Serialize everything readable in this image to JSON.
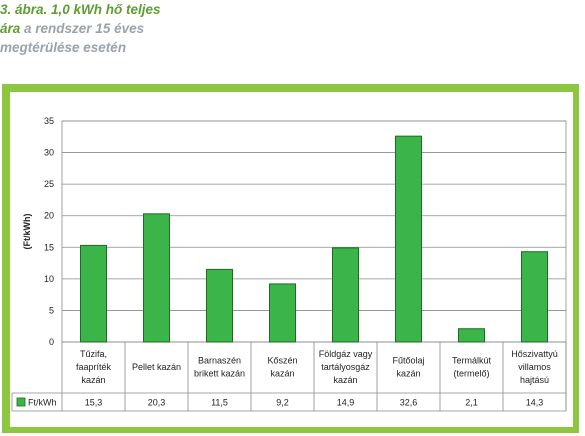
{
  "caption": {
    "line1_green": "3. ábra. 1,0 kWh hő teljes",
    "line2_green": "ára",
    "line2_gray": " a rendszer 15 éves",
    "line3_gray": "megtérülése esetén"
  },
  "colors": {
    "frame": "#8dc63f",
    "bar": "#3bb54a",
    "bar_stroke": "#1e6b24",
    "caption_green": "#5e9e33",
    "caption_gray": "#9ba3a9"
  },
  "chart_data": {
    "type": "bar",
    "ylabel": "(Ft/kWh)",
    "ylim": [
      0,
      35
    ],
    "yticks": [
      0,
      5,
      10,
      15,
      20,
      25,
      30,
      35
    ],
    "grid": true,
    "categories": [
      [
        "Tűzifa,",
        "faapríték",
        "kazán"
      ],
      [
        "Pellet kazán"
      ],
      [
        "Barnaszén",
        "brikett kazán"
      ],
      [
        "Kőszén",
        "kazán"
      ],
      [
        "Földgáz vagy",
        "tartályosgáz",
        "kazán"
      ],
      [
        "Fűtőolaj",
        "kazán"
      ],
      [
        "Termálkút",
        "(termelő)"
      ],
      [
        "Hőszivattyú",
        "villamos",
        "hajtású"
      ]
    ],
    "series": [
      {
        "name": "Ft/kWh",
        "values": [
          15.3,
          20.3,
          11.5,
          9.2,
          14.9,
          32.6,
          2.1,
          14.3
        ],
        "value_labels": [
          "15,3",
          "20,3",
          "11,5",
          "9,2",
          "14,9",
          "32,6",
          "2,1",
          "14,3"
        ]
      }
    ],
    "legend": "data-table-left"
  }
}
